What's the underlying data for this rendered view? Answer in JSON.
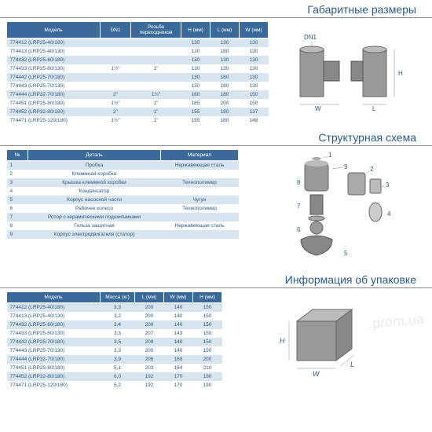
{
  "sections": {
    "dims": "Габаритные размеры",
    "struct": "Структурная схема",
    "pack": "Информация об упаковке"
  },
  "dims_table": {
    "headers": [
      "Модель",
      "DN1",
      "Резьба переходников",
      "H (мм)",
      "L (мм)",
      "W (мм)"
    ],
    "rows": [
      [
        "774412 (LRP25-40/180)",
        "",
        "",
        "130",
        "130",
        "130"
      ],
      [
        "774413 (LRP25-40/130)",
        "",
        "",
        "130",
        "180",
        "130"
      ],
      [
        "774432 (LRP25-60/180)",
        "",
        "",
        "130",
        "130",
        "130"
      ],
      [
        "774433 (LRP25-60/130)",
        "1½\"",
        "1\"",
        "130",
        "130",
        "130"
      ],
      [
        "774442 (LRP25-70/180)",
        "",
        "",
        "130",
        "180",
        "130"
      ],
      [
        "774443 (LRP25-70/130)",
        "",
        "",
        "130",
        "180",
        "130"
      ],
      [
        "774444 (LRP32-70/180)",
        "2\"",
        "1¼\"",
        "160",
        "180",
        "150"
      ],
      [
        "774451 (LRP25-80/180)",
        "1½\"",
        "1\"",
        "185",
        "200",
        "150"
      ],
      [
        "774452 (LRP32-80/180)",
        "2\"",
        "1\"",
        "155",
        "180",
        "137"
      ],
      [
        "774471 (LRP25-120/180)",
        "1½\"",
        "1\"",
        "155",
        "180",
        "148"
      ]
    ]
  },
  "parts_table": {
    "headers": [
      "№",
      "Деталь",
      "Материал"
    ],
    "rows": [
      [
        "1",
        "Пробка",
        "Нержавеющая сталь"
      ],
      [
        "2",
        "Клеммная коробка",
        ""
      ],
      [
        "3",
        "Крышка клеммной коробки",
        "Технополимер"
      ],
      [
        "4",
        "Конденсатор",
        ""
      ],
      [
        "5",
        "Корпус насосной части",
        "Чугун"
      ],
      [
        "6",
        "Рабочее колесо",
        "Технополимер"
      ],
      [
        "7",
        "Ротор с керамическими подшипниками",
        ""
      ],
      [
        "8",
        "Гильза защитная",
        "Нержавеющая сталь"
      ],
      [
        "9",
        "Корпус электродвигателя (статор)",
        ""
      ]
    ]
  },
  "pack_table": {
    "headers": [
      "Модель",
      "Масса (кг)",
      "L (мм)",
      "W (мм)",
      "H (мм)"
    ],
    "rows": [
      [
        "774412 (LRP25-40/180)",
        "3,3",
        "200",
        "140",
        "150"
      ],
      [
        "774413 (LRP25-40/130)",
        "3,2",
        "200",
        "140",
        "150"
      ],
      [
        "774432 (LRP25-60/180)",
        "3,4",
        "200",
        "140",
        "150"
      ],
      [
        "774433 (LRP25-60/130)",
        "3,3",
        "207",
        "143",
        "150"
      ],
      [
        "774442 (LRP25-70/180)",
        "3,5",
        "200",
        "140",
        "150"
      ],
      [
        "774443 (LRP25-70/130)",
        "3,3",
        "200",
        "140",
        "150"
      ],
      [
        "774444 (LRP32-70/180)",
        "3,9",
        "206",
        "168",
        "200"
      ],
      [
        "774451 (LRP25-80/180)",
        "5,1",
        "203",
        "164",
        "210"
      ],
      [
        "774452 (LRP32-80/180)",
        "6,0",
        "192",
        "170",
        "190"
      ],
      [
        "774471 (LRP25-120/180)",
        "5,2",
        "192",
        "170",
        "190"
      ]
    ]
  },
  "diagram_labels": {
    "pump_dn1": "DN1",
    "pump_w": "W",
    "pump_l": "L",
    "pump_h": "H",
    "box_w": "W",
    "box_l": "L",
    "box_h": "H"
  },
  "colors": {
    "header_bg": "#3a6a9a",
    "alt_row": "#d8e4ee",
    "title_color": "#2a5a8a"
  },
  "watermark": ".prom.ua"
}
